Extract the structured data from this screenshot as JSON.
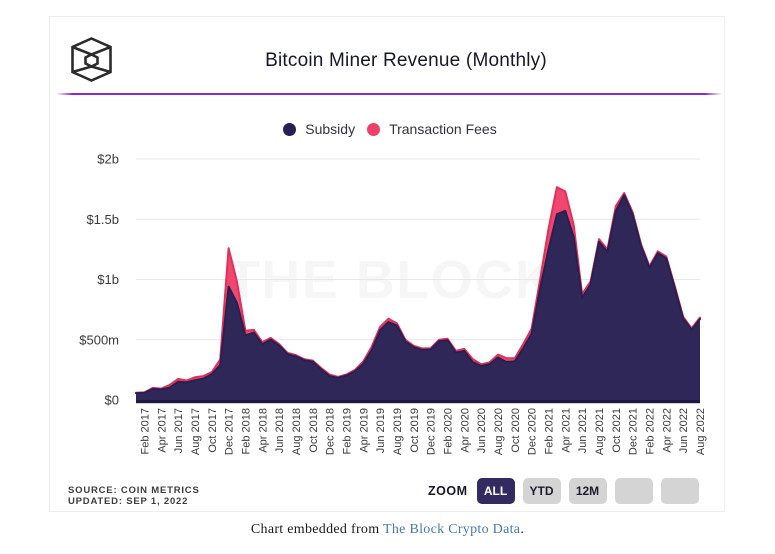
{
  "header": {
    "title": "Bitcoin Miner Revenue (Monthly)",
    "logo": "the-block-cube-logo"
  },
  "legend": {
    "items": [
      {
        "label": "Subsidy",
        "color": "#262058"
      },
      {
        "label": "Transaction Fees",
        "color": "#ef3f6b"
      }
    ]
  },
  "watermark": "THE BLOCK",
  "chart_data": {
    "type": "area",
    "stacked": true,
    "title": "Bitcoin Miner Revenue (Monthly)",
    "unit": "USD millions",
    "grid": true,
    "legend_position": "top",
    "ylim": [
      0,
      2000
    ],
    "y_ticks": [
      {
        "value": 0,
        "label": "$0"
      },
      {
        "value": 500,
        "label": "$500m"
      },
      {
        "value": 1000,
        "label": "$1b"
      },
      {
        "value": 1500,
        "label": "$1.5b"
      },
      {
        "value": 2000,
        "label": "$2b"
      }
    ],
    "x": [
      "Jan 2017",
      "Feb 2017",
      "Mar 2017",
      "Apr 2017",
      "May 2017",
      "Jun 2017",
      "Jul 2017",
      "Aug 2017",
      "Sep 2017",
      "Oct 2017",
      "Nov 2017",
      "Dec 2017",
      "Jan 2018",
      "Feb 2018",
      "Mar 2018",
      "Apr 2018",
      "May 2018",
      "Jun 2018",
      "Jul 2018",
      "Aug 2018",
      "Sep 2018",
      "Oct 2018",
      "Nov 2018",
      "Dec 2018",
      "Jan 2019",
      "Feb 2019",
      "Mar 2019",
      "Apr 2019",
      "May 2019",
      "Jun 2019",
      "Jul 2019",
      "Aug 2019",
      "Sep 2019",
      "Oct 2019",
      "Nov 2019",
      "Dec 2019",
      "Jan 2020",
      "Feb 2020",
      "Mar 2020",
      "Apr 2020",
      "May 2020",
      "Jun 2020",
      "Jul 2020",
      "Aug 2020",
      "Sep 2020",
      "Oct 2020",
      "Nov 2020",
      "Dec 2020",
      "Jan 2021",
      "Feb 2021",
      "Mar 2021",
      "Apr 2021",
      "May 2021",
      "Jun 2021",
      "Jul 2021",
      "Aug 2021",
      "Sep 2021",
      "Oct 2021",
      "Nov 2021",
      "Dec 2021",
      "Jan 2022",
      "Feb 2022",
      "Mar 2022",
      "Apr 2022",
      "May 2022",
      "Jun 2022",
      "Jul 2022",
      "Aug 2022"
    ],
    "x_tick_every": 2,
    "x_first_tick_index": 1,
    "series": [
      {
        "name": "Subsidy",
        "color": "#302759",
        "line_color": "#282050",
        "values": [
          57,
          60,
          92,
          88,
          103,
          151,
          146,
          164,
          178,
          215,
          290,
          940,
          805,
          537,
          559,
          463,
          501,
          453,
          381,
          363,
          330,
          319,
          255,
          198,
          184,
          203,
          238,
          301,
          413,
          579,
          647,
          617,
          486,
          438,
          416,
          420,
          489,
          496,
          393,
          407,
          315,
          282,
          298,
          353,
          315,
          321,
          429,
          550,
          925,
          1250,
          1541,
          1570,
          1352,
          848,
          960,
          1313,
          1230,
          1568,
          1700,
          1539,
          1276,
          1096,
          1219,
          1175,
          934,
          677,
          583,
          672
        ]
      },
      {
        "name": "Transaction Fees",
        "color": "#ef476f",
        "line_color": "#e23059",
        "values": [
          3,
          3,
          8,
          7,
          22,
          24,
          16,
          24,
          20,
          17,
          45,
          320,
          175,
          38,
          23,
          17,
          14,
          12,
          10,
          10,
          8,
          8,
          10,
          13,
          8,
          9,
          12,
          19,
          29,
          28,
          28,
          18,
          14,
          12,
          12,
          10,
          11,
          13,
          15,
          17,
          25,
          14,
          15,
          24,
          32,
          25,
          35,
          42,
          75,
          170,
          225,
          160,
          100,
          32,
          25,
          22,
          20,
          40,
          18,
          18,
          16,
          14,
          15,
          15,
          14,
          13,
          12,
          13
        ]
      }
    ]
  },
  "footer": {
    "source_line1": "SOURCE: COIN METRICS",
    "source_line2": "UPDATED: SEP 1, 2022",
    "zoom_label": "ZOOM",
    "zoom_buttons": [
      {
        "label": "ALL",
        "active": true
      },
      {
        "label": "YTD",
        "active": false
      },
      {
        "label": "12M",
        "active": false
      },
      {
        "label": "",
        "active": false
      },
      {
        "label": "",
        "active": false
      }
    ]
  },
  "caption": {
    "prefix": "Chart embedded from ",
    "link_text": "The Block Crypto Data",
    "suffix": "."
  },
  "colors": {
    "divider": "#8c2bc5",
    "grid": "#e7e7e7",
    "axis_line": "#1e1941",
    "axis_text": "#3a3a3a",
    "watermark": "rgba(0,0,0,0.037)",
    "active_button_bg": "#332a60",
    "inactive_button_bg": "#d4d4d4",
    "link": "#4779ad"
  }
}
